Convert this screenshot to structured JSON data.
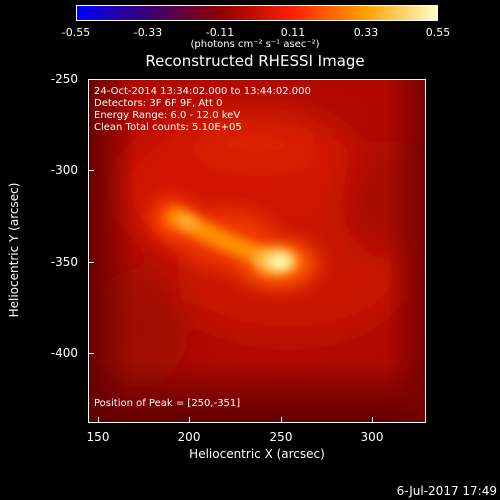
{
  "colorbar": {
    "ticks": [
      "-0.55",
      "-0.33",
      "-0.11",
      "0.11",
      "0.33",
      "0.55"
    ],
    "units": "(photons cm⁻² s⁻¹ asec⁻²)",
    "colors": [
      "#0000ff",
      "#3c0070",
      "#900000",
      "#ff2000",
      "#ffa000",
      "#ffffc8"
    ]
  },
  "title": "Reconstructed RHESSI Image",
  "annotations": {
    "line1": "24-Oct-2014 13:34:02.000 to 13:44:02.000",
    "line2": "Detectors: 3F 6F 9F, Att 0",
    "line3": "Energy Range: 6.0 - 12.0 keV",
    "line4": "Clean    Total counts: 5.10E+05",
    "peak": "Position of Peak = [250,-351]"
  },
  "axes": {
    "xlabel": "Heliocentric X (arcsec)",
    "ylabel": "Heliocentric Y (arcsec)",
    "xticks": [
      "150",
      "200",
      "250",
      "300"
    ],
    "yticks": [
      "-250",
      "-300",
      "-350",
      "-400"
    ]
  },
  "date": "6-Jul-2017 17:49"
}
